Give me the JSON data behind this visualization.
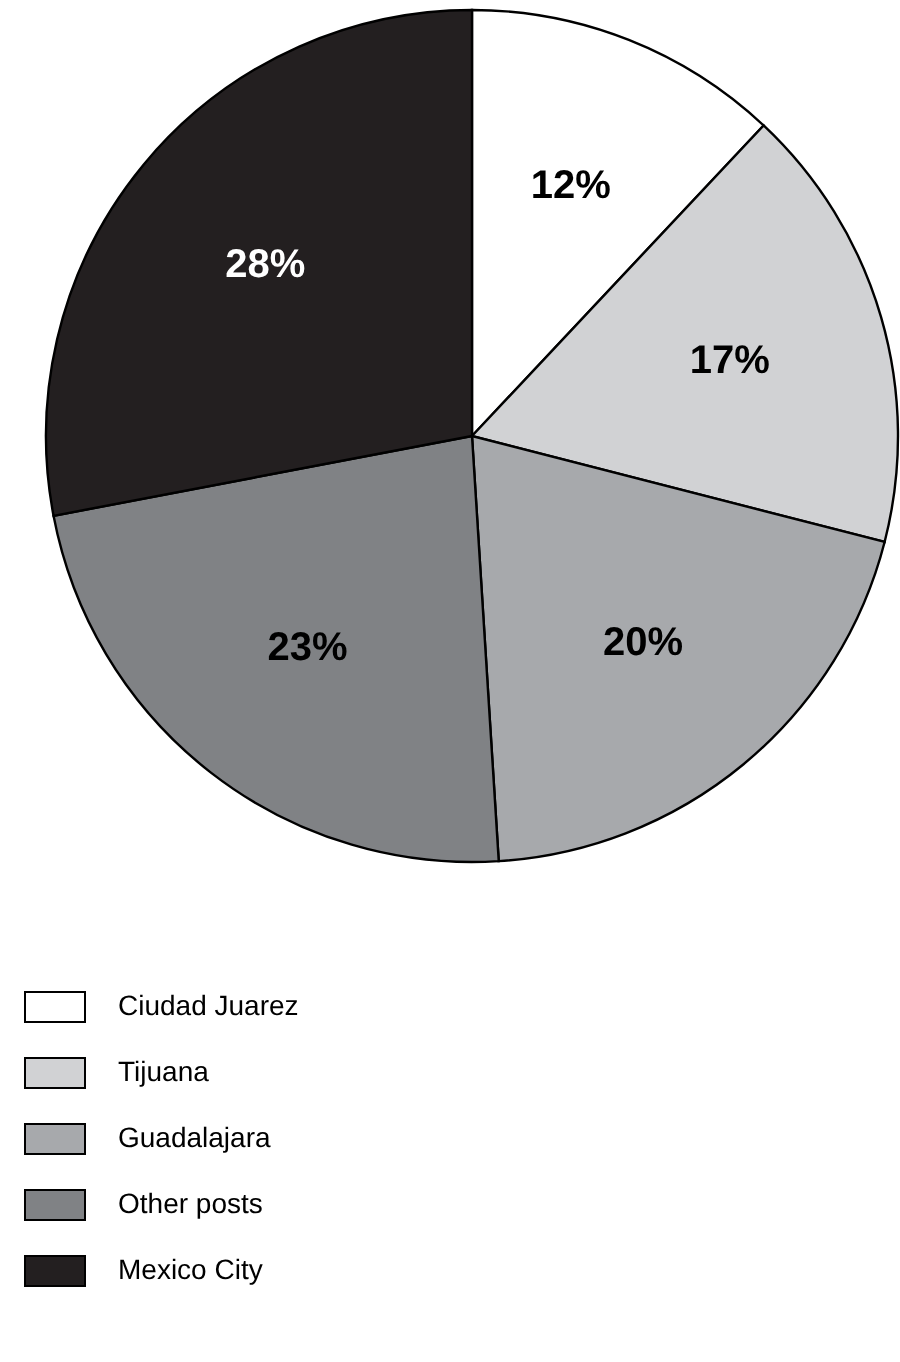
{
  "chart_data": {
    "type": "pie",
    "categories": [
      "Ciudad Juarez",
      "Tijuana",
      "Guadalajara",
      "Other posts",
      "Mexico City"
    ],
    "values": [
      12,
      17,
      20,
      23,
      28
    ],
    "colors": [
      "#ffffff",
      "#d1d2d4",
      "#a7a9ac",
      "#808285",
      "#231f20"
    ],
    "value_labels": [
      "12%",
      "17%",
      "20%",
      "23%",
      "28%"
    ],
    "legend": "bottom left"
  }
}
